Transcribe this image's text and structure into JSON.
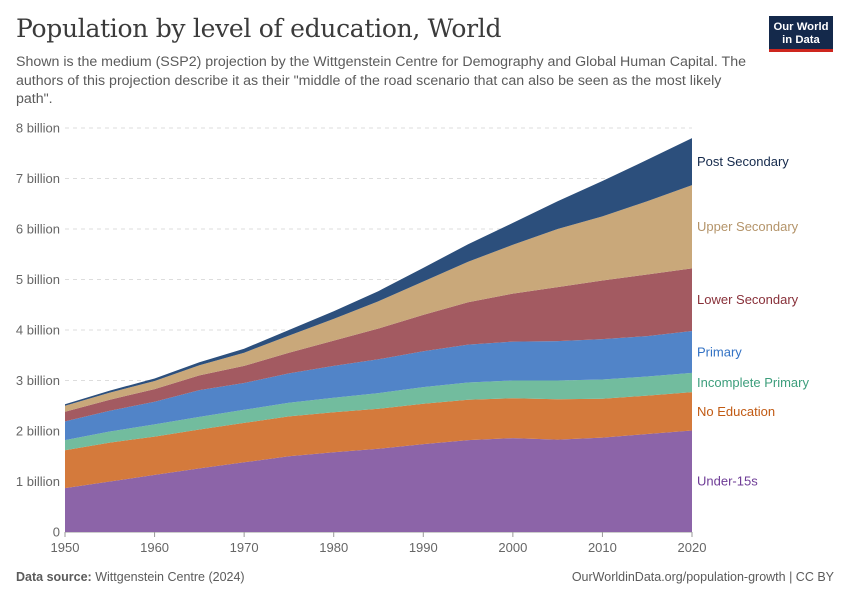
{
  "title": "Population by level of education, World",
  "subtitle": "Shown is the medium (SSP2) projection by the Wittgenstein Centre for Demography and Global Human Capital. The authors of this projection describe it as their \"middle of the road scenario that can also be seen as the most likely path\".",
  "logo": {
    "line1": "Our World",
    "line2": "in Data",
    "bg": "#14294b",
    "accent": "#ce261e"
  },
  "footer": {
    "source_label": "Data source:",
    "source_value": "Wittgenstein Centre (2024)",
    "right": "OurWorldinData.org/population-growth | CC BY"
  },
  "chart_data": {
    "type": "area",
    "stacked": true,
    "x": [
      1950,
      1955,
      1960,
      1965,
      1970,
      1975,
      1980,
      1985,
      1990,
      1995,
      2000,
      2005,
      2010,
      2015,
      2020
    ],
    "y_ticks": [
      "0",
      "1 billion",
      "2 billion",
      "3 billion",
      "4 billion",
      "5 billion",
      "6 billion",
      "7 billion",
      "8 billion"
    ],
    "x_ticks": [
      "1950",
      "1960",
      "1970",
      "1980",
      "1990",
      "2000",
      "2010",
      "2020"
    ],
    "ylim": [
      0,
      8
    ],
    "xlim": [
      1950,
      2020
    ],
    "grid": "horizontal-dashed",
    "series": [
      {
        "name": "Under-15s",
        "color": "#8c64a8",
        "label_color": "#6e3c96",
        "values": [
          0.87,
          1.0,
          1.13,
          1.26,
          1.38,
          1.5,
          1.58,
          1.65,
          1.74,
          1.82,
          1.86,
          1.83,
          1.87,
          1.94,
          2.01
        ]
      },
      {
        "name": "No Education",
        "color": "#d47a3c",
        "label_color": "#c15a13",
        "values": [
          0.75,
          0.77,
          0.76,
          0.77,
          0.78,
          0.79,
          0.79,
          0.79,
          0.8,
          0.8,
          0.79,
          0.8,
          0.77,
          0.76,
          0.76
        ]
      },
      {
        "name": "Incomplete Primary",
        "color": "#72bc9e",
        "label_color": "#3d9e7c",
        "values": [
          0.2,
          0.22,
          0.24,
          0.25,
          0.26,
          0.27,
          0.29,
          0.31,
          0.33,
          0.34,
          0.35,
          0.37,
          0.38,
          0.38,
          0.38
        ]
      },
      {
        "name": "Primary",
        "color": "#5184c8",
        "label_color": "#3372c4",
        "values": [
          0.37,
          0.41,
          0.45,
          0.53,
          0.53,
          0.58,
          0.63,
          0.67,
          0.71,
          0.75,
          0.77,
          0.78,
          0.8,
          0.8,
          0.83
        ]
      },
      {
        "name": "Lower Secondary",
        "color": "#a35a61",
        "label_color": "#883039",
        "values": [
          0.19,
          0.22,
          0.25,
          0.29,
          0.34,
          0.41,
          0.5,
          0.61,
          0.72,
          0.84,
          0.95,
          1.07,
          1.16,
          1.22,
          1.24
        ]
      },
      {
        "name": "Upper Secondary",
        "color": "#c9a87a",
        "label_color": "#b4946a",
        "values": [
          0.12,
          0.14,
          0.16,
          0.2,
          0.26,
          0.34,
          0.43,
          0.54,
          0.66,
          0.8,
          0.97,
          1.15,
          1.27,
          1.45,
          1.65
        ]
      },
      {
        "name": "Post Secondary",
        "color": "#2c4f7c",
        "label_color": "#14294b",
        "values": [
          0.03,
          0.04,
          0.05,
          0.06,
          0.08,
          0.11,
          0.15,
          0.2,
          0.27,
          0.35,
          0.43,
          0.55,
          0.7,
          0.82,
          0.93
        ]
      }
    ]
  }
}
